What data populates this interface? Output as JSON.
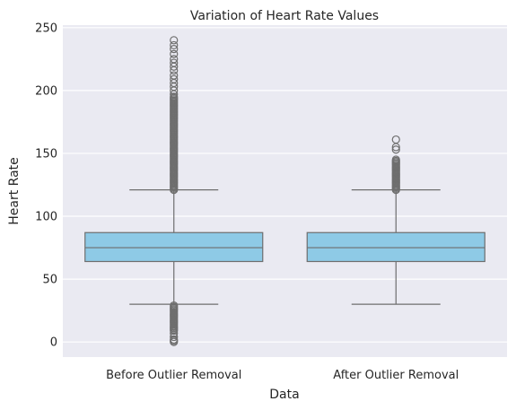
{
  "chart_data": {
    "type": "box",
    "title": "Variation of Heart Rate Values",
    "xlabel": "Data",
    "ylabel": "Heart Rate",
    "ylim": [
      -12,
      252
    ],
    "yticks": [
      0,
      50,
      100,
      150,
      200,
      250
    ],
    "grid": true,
    "colors": {
      "background": "#eaeaf2",
      "grid": "#ffffff",
      "box_fill": "#8ecae6",
      "box_line": "#6e6e6e"
    },
    "categories": [
      "Before Outlier Removal",
      "After Outlier Removal"
    ],
    "boxes": [
      {
        "category": "Before Outlier Removal",
        "min": 30,
        "q1": 64,
        "median": 75,
        "q3": 87,
        "max": 121,
        "outliers_high_dense_range": [
          121,
          195
        ],
        "outliers_high": [
          197,
          200,
          203,
          206,
          209,
          212,
          216,
          219,
          222,
          225,
          229,
          233,
          236,
          240
        ],
        "outliers_low_dense_range": [
          10,
          29
        ],
        "outliers_low": [
          0,
          1,
          2,
          4,
          7,
          9
        ]
      },
      {
        "category": "After Outlier Removal",
        "min": 30,
        "q1": 64,
        "median": 75,
        "q3": 87,
        "max": 121,
        "outliers_high_dense_range": [
          121,
          145
        ],
        "outliers_high": [
          153,
          155,
          161
        ],
        "outliers_low_dense_range": null,
        "outliers_low": []
      }
    ]
  }
}
